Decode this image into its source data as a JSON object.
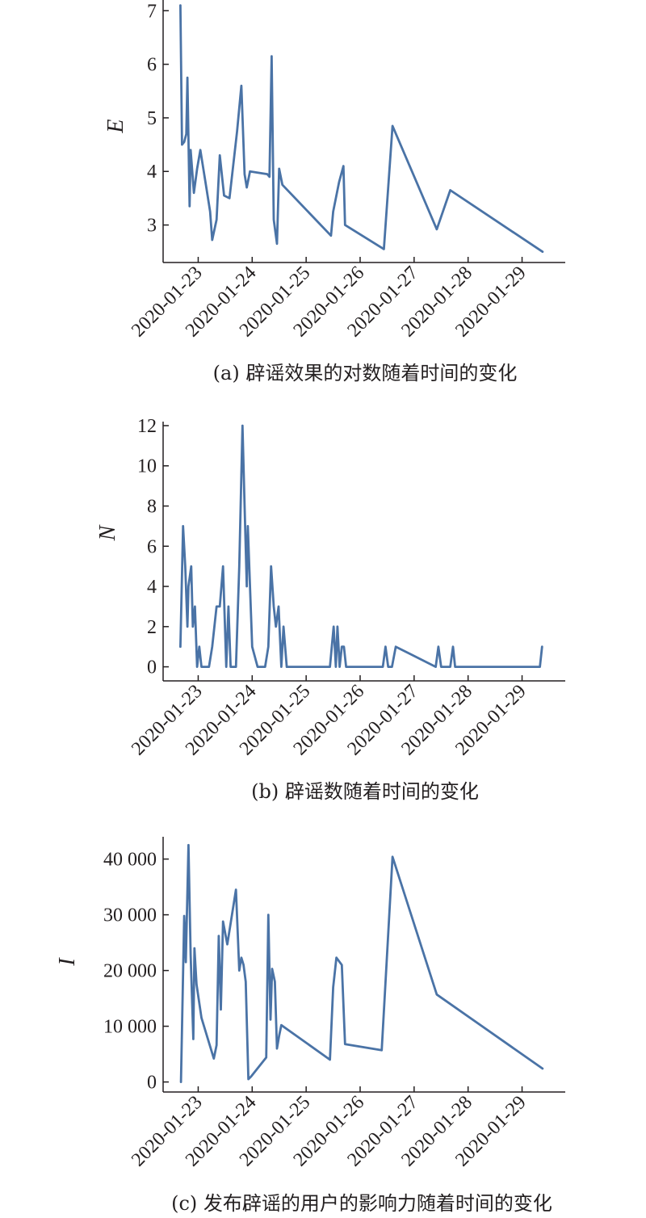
{
  "chart_data": [
    {
      "type": "line",
      "caption": "(a) 辟谣效果的对数随着时间的变化",
      "ylabel": "E",
      "xticks": [
        "2020-01-23",
        "2020-01-24",
        "2020-01-25",
        "2020-01-26",
        "2020-01-27",
        "2020-01-28",
        "2020-01-29"
      ],
      "yticks": [
        "3",
        "4",
        "5",
        "6",
        "7"
      ],
      "ytick_values": [
        3,
        4,
        5,
        6,
        7
      ],
      "xlim": [
        -0.65,
        6.8
      ],
      "ylim": [
        2.3,
        7.2
      ],
      "x": [
        -0.33,
        -0.3,
        -0.26,
        -0.22,
        -0.2,
        -0.16,
        -0.14,
        -0.08,
        -0.02,
        0.04,
        0.15,
        0.22,
        0.26,
        0.34,
        0.4,
        0.48,
        0.58,
        0.72,
        0.8,
        0.86,
        0.9,
        0.96,
        1.28,
        1.32,
        1.36,
        1.4,
        1.46,
        1.5,
        1.56,
        2.46,
        2.5,
        2.61,
        2.69,
        2.72,
        3.44,
        3.6,
        4.42,
        4.67,
        6.38
      ],
      "series": [
        {
          "values": [
            7.1,
            4.5,
            4.55,
            4.7,
            5.75,
            3.35,
            4.4,
            3.6,
            4.05,
            4.4,
            3.7,
            3.25,
            2.72,
            3.1,
            4.3,
            3.55,
            3.5,
            4.75,
            5.6,
            3.95,
            3.7,
            4.0,
            3.95,
            3.9,
            6.15,
            3.1,
            2.65,
            4.05,
            3.75,
            2.8,
            3.25,
            3.8,
            4.1,
            3.0,
            2.55,
            4.85,
            2.92,
            3.65,
            2.5
          ]
        }
      ]
    },
    {
      "type": "line",
      "caption": "(b) 辟谣数随着时间的变化",
      "ylabel": "N",
      "xticks": [
        "2020-01-23",
        "2020-01-24",
        "2020-01-25",
        "2020-01-26",
        "2020-01-27",
        "2020-01-28",
        "2020-01-29"
      ],
      "yticks": [
        "0",
        "2",
        "4",
        "6",
        "8",
        "10",
        "12"
      ],
      "ytick_values": [
        0,
        2,
        4,
        6,
        8,
        10,
        12
      ],
      "xlim": [
        -0.65,
        6.8
      ],
      "ylim": [
        -0.7,
        12.2
      ],
      "x": [
        -0.33,
        -0.28,
        -0.24,
        -0.2,
        -0.18,
        -0.13,
        -0.1,
        -0.06,
        -0.02,
        0.02,
        0.06,
        0.2,
        0.26,
        0.34,
        0.4,
        0.46,
        0.52,
        0.56,
        0.6,
        0.7,
        0.76,
        0.82,
        0.86,
        0.9,
        0.92,
        1.0,
        1.1,
        1.24,
        1.3,
        1.35,
        1.4,
        1.44,
        1.49,
        1.54,
        1.58,
        1.64,
        2.44,
        2.51,
        2.55,
        2.58,
        2.62,
        2.66,
        2.7,
        2.74,
        3.42,
        3.47,
        3.52,
        3.59,
        3.66,
        4.4,
        4.45,
        4.5,
        4.67,
        4.72,
        4.76,
        6.33,
        6.37
      ],
      "series": [
        {
          "values": [
            1,
            7,
            5,
            2,
            4,
            5,
            2,
            3,
            0,
            1,
            0,
            0,
            1,
            3,
            3,
            5,
            0,
            3,
            0,
            0,
            5,
            12,
            8,
            4,
            7,
            1,
            0,
            0,
            1,
            5,
            3,
            2,
            3,
            0,
            2,
            0,
            0,
            2,
            0,
            2,
            0,
            1,
            1,
            0,
            0,
            1,
            0,
            0,
            1,
            0,
            1,
            0,
            0,
            1,
            0,
            0,
            1
          ]
        }
      ]
    },
    {
      "type": "line",
      "caption": "(c) 发布辟谣的用户的影响力随着时间的变化",
      "ylabel": "I",
      "xticks": [
        "2020-01-23",
        "2020-01-24",
        "2020-01-25",
        "2020-01-26",
        "2020-01-27",
        "2020-01-28",
        "2020-01-29"
      ],
      "yticks": [
        "0",
        "10 000",
        "20 000",
        "30 000",
        "40 000"
      ],
      "ytick_values": [
        0,
        10000,
        20000,
        30000,
        40000
      ],
      "xlim": [
        -0.65,
        6.8
      ],
      "ylim": [
        -1800,
        44000
      ],
      "x": [
        -0.32,
        -0.26,
        -0.23,
        -0.18,
        -0.14,
        -0.09,
        -0.07,
        -0.03,
        0.06,
        0.29,
        0.34,
        0.38,
        0.42,
        0.46,
        0.54,
        0.7,
        0.76,
        0.8,
        0.84,
        0.88,
        0.93,
        0.98,
        1.26,
        1.3,
        1.34,
        1.37,
        1.42,
        1.46,
        1.5,
        1.54,
        2.44,
        2.5,
        2.56,
        2.66,
        2.72,
        3.4,
        3.6,
        4.42,
        6.38
      ],
      "series": [
        {
          "values": [
            0,
            29800,
            21500,
            42500,
            22800,
            7700,
            24000,
            17500,
            11500,
            4200,
            6600,
            26200,
            13000,
            28800,
            24700,
            34500,
            20000,
            22300,
            21000,
            18000,
            500,
            1000,
            4400,
            30000,
            11200,
            20300,
            18000,
            6000,
            8300,
            10200,
            4000,
            17000,
            22300,
            21000,
            6800,
            5700,
            40400,
            15700,
            2400
          ]
        }
      ]
    }
  ]
}
